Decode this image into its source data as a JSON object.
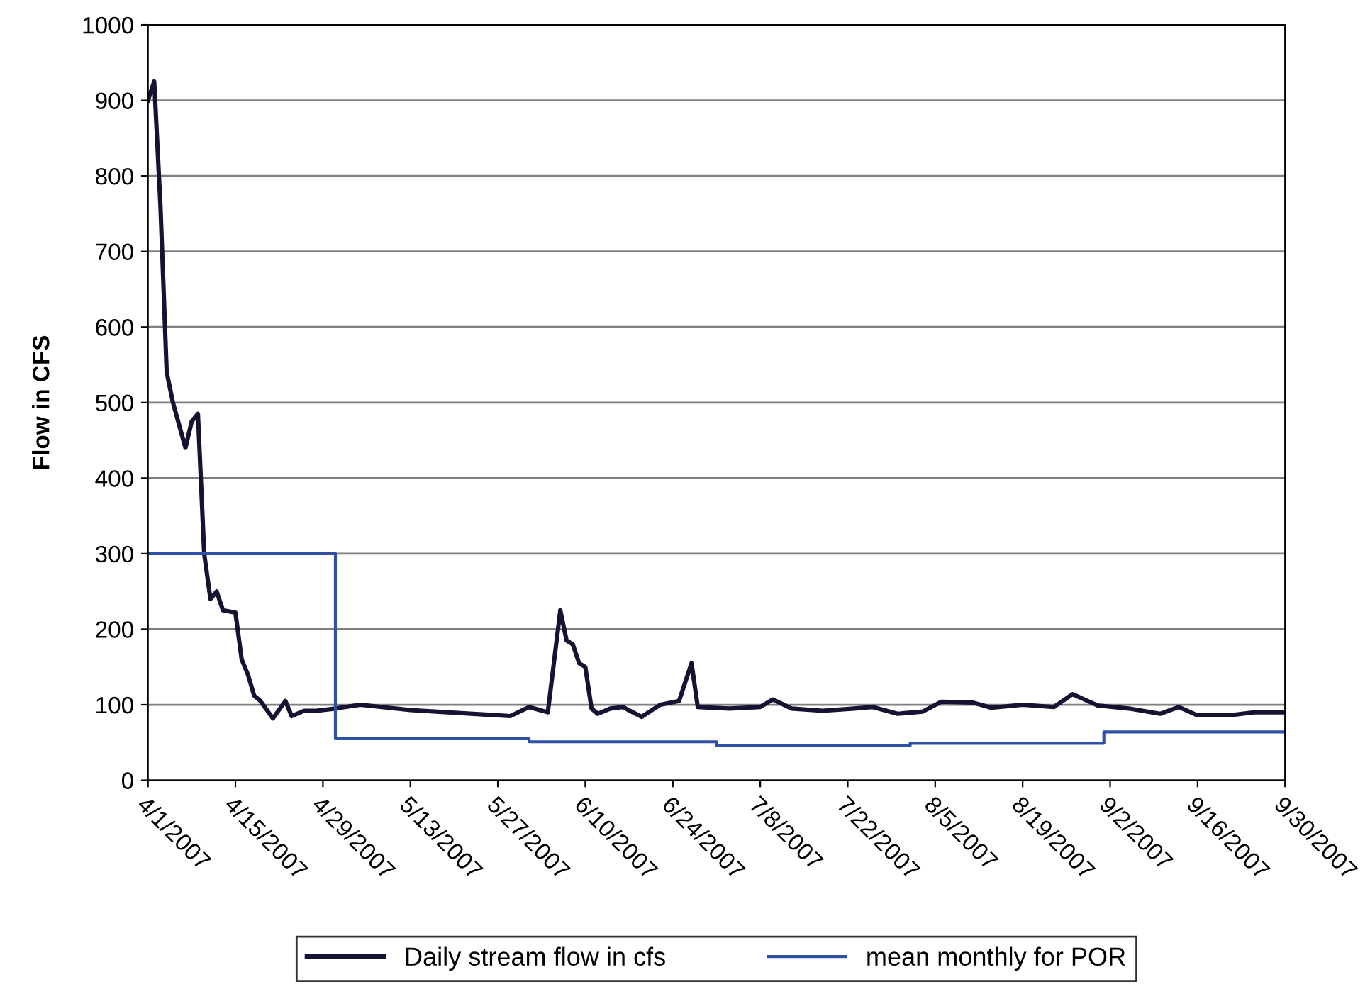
{
  "chart_data": {
    "type": "line",
    "ylabel": "Flow in CFS",
    "xlim": [
      "2007-04-01",
      "2007-09-30"
    ],
    "xticks": [
      {
        "value": "2007-04-01",
        "label": "4/1/2007"
      },
      {
        "value": "2007-04-15",
        "label": "4/15/2007"
      },
      {
        "value": "2007-04-29",
        "label": "4/29/2007"
      },
      {
        "value": "2007-05-13",
        "label": "5/13/2007"
      },
      {
        "value": "2007-05-27",
        "label": "5/27/2007"
      },
      {
        "value": "2007-06-10",
        "label": "6/10/2007"
      },
      {
        "value": "2007-06-24",
        "label": "6/24/2007"
      },
      {
        "value": "2007-07-08",
        "label": "7/8/2007"
      },
      {
        "value": "2007-07-22",
        "label": "7/22/2007"
      },
      {
        "value": "2007-08-05",
        "label": "8/5/2007"
      },
      {
        "value": "2007-08-19",
        "label": "8/19/2007"
      },
      {
        "value": "2007-09-02",
        "label": "9/2/2007"
      },
      {
        "value": "2007-09-16",
        "label": "9/16/2007"
      },
      {
        "value": "2007-09-30",
        "label": "9/30/2007"
      }
    ],
    "ylim": [
      0,
      1000
    ],
    "yticks": [
      0,
      100,
      200,
      300,
      400,
      500,
      600,
      700,
      800,
      900,
      1000
    ],
    "grid": "y",
    "legend": "bottom",
    "series": [
      {
        "name": "Daily stream flow in cfs",
        "color": "#141432",
        "x": [
          "2007-04-01",
          "2007-04-02",
          "2007-04-03",
          "2007-04-04",
          "2007-04-05",
          "2007-04-07",
          "2007-04-08",
          "2007-04-09",
          "2007-04-10",
          "2007-04-11",
          "2007-04-12",
          "2007-04-13",
          "2007-04-15",
          "2007-04-16",
          "2007-04-17",
          "2007-04-18",
          "2007-04-19",
          "2007-04-21",
          "2007-04-23",
          "2007-04-24",
          "2007-04-26",
          "2007-04-28",
          "2007-05-01",
          "2007-05-05",
          "2007-05-13",
          "2007-05-25",
          "2007-05-29",
          "2007-06-01",
          "2007-06-04",
          "2007-06-06",
          "2007-06-07",
          "2007-06-08",
          "2007-06-09",
          "2007-06-10",
          "2007-06-11",
          "2007-06-12",
          "2007-06-14",
          "2007-06-16",
          "2007-06-19",
          "2007-06-22",
          "2007-06-25",
          "2007-06-27",
          "2007-06-28",
          "2007-07-03",
          "2007-07-08",
          "2007-07-10",
          "2007-07-13",
          "2007-07-18",
          "2007-07-23",
          "2007-07-26",
          "2007-07-30",
          "2007-08-03",
          "2007-08-06",
          "2007-08-11",
          "2007-08-14",
          "2007-08-19",
          "2007-08-24",
          "2007-08-27",
          "2007-08-31",
          "2007-09-05",
          "2007-09-10",
          "2007-09-13",
          "2007-09-16",
          "2007-09-21",
          "2007-09-25",
          "2007-09-30"
        ],
        "values": [
          900,
          925,
          760,
          540,
          500,
          440,
          475,
          485,
          300,
          240,
          250,
          225,
          222,
          160,
          140,
          112,
          105,
          82,
          105,
          85,
          92,
          92,
          95,
          100,
          93,
          87,
          85,
          97,
          90,
          225,
          185,
          180,
          155,
          150,
          95,
          88,
          95,
          97,
          84,
          100,
          105,
          155,
          97,
          95,
          97,
          107,
          95,
          92,
          95,
          97,
          88,
          91,
          104,
          103,
          96,
          100,
          97,
          114,
          99,
          95,
          88,
          97,
          86,
          86,
          90,
          90
        ]
      },
      {
        "name": "mean monthly for POR",
        "type": "step",
        "color": "#3050a8",
        "x": [
          "2007-04-01",
          "2007-05-01",
          "2007-06-01",
          "2007-07-01",
          "2007-08-01",
          "2007-09-01",
          "2007-09-30"
        ],
        "values": [
          300,
          55,
          51,
          46,
          49,
          64,
          64
        ]
      }
    ]
  }
}
